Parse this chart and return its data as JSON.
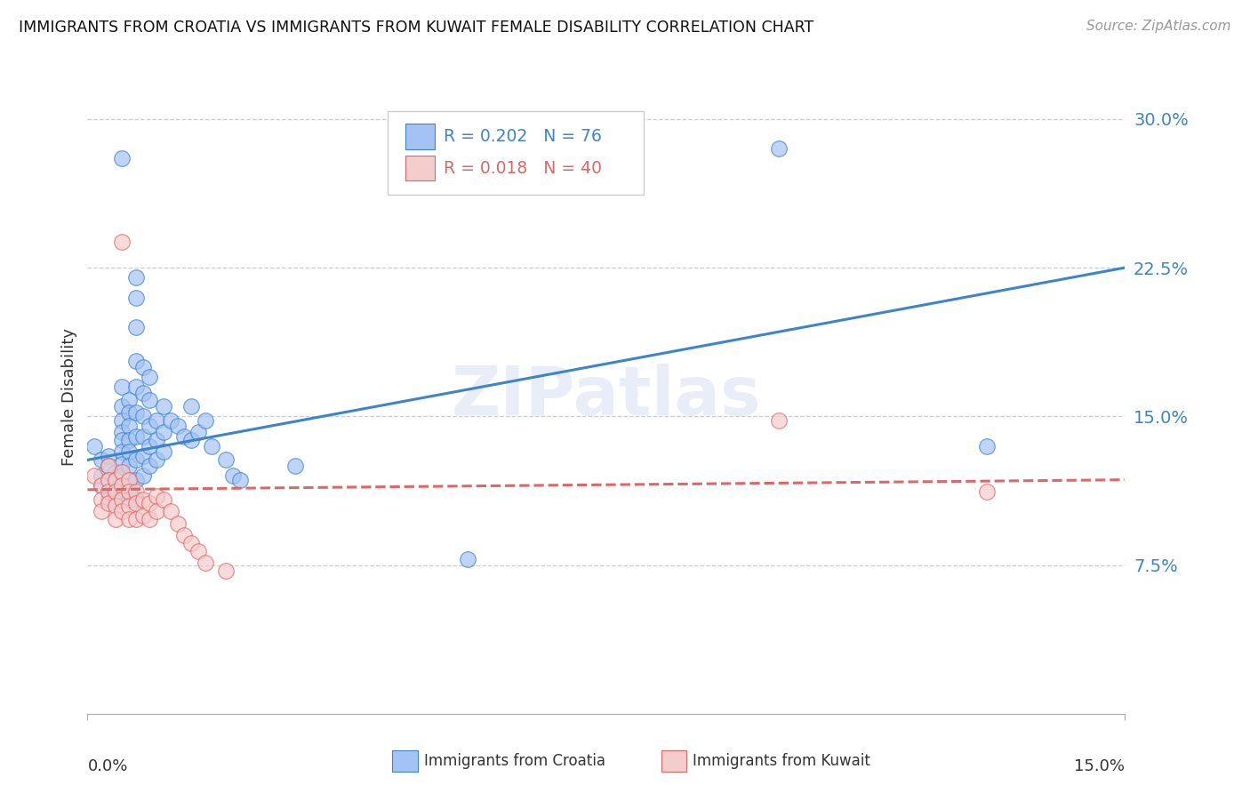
{
  "title": "IMMIGRANTS FROM CROATIA VS IMMIGRANTS FROM KUWAIT FEMALE DISABILITY CORRELATION CHART",
  "source": "Source: ZipAtlas.com",
  "ylabel": "Female Disability",
  "yticks": [
    0.0,
    0.075,
    0.15,
    0.225,
    0.3
  ],
  "ytick_labels": [
    "",
    "7.5%",
    "15.0%",
    "22.5%",
    "30.0%"
  ],
  "xlim": [
    0.0,
    0.15
  ],
  "ylim": [
    0.0,
    0.32
  ],
  "watermark": "ZIPatlas",
  "color_croatia": "#a4c2f4",
  "color_kuwait": "#f4cccc",
  "color_line_croatia": "#3d85c8",
  "color_line_kuwait": "#e06666",
  "legend_label_1": "Immigrants from Croatia",
  "legend_label_2": "Immigrants from Kuwait",
  "cr_line_y0": 0.128,
  "cr_line_y1": 0.225,
  "kw_line_y0": 0.113,
  "kw_line_y1": 0.118,
  "croatia_pts": [
    [
      0.001,
      0.135
    ],
    [
      0.002,
      0.128
    ],
    [
      0.002,
      0.12
    ],
    [
      0.002,
      0.115
    ],
    [
      0.003,
      0.13
    ],
    [
      0.003,
      0.125
    ],
    [
      0.003,
      0.118
    ],
    [
      0.003,
      0.112
    ],
    [
      0.003,
      0.108
    ],
    [
      0.004,
      0.122
    ],
    [
      0.004,
      0.117
    ],
    [
      0.004,
      0.113
    ],
    [
      0.004,
      0.107
    ],
    [
      0.005,
      0.28
    ],
    [
      0.005,
      0.165
    ],
    [
      0.005,
      0.155
    ],
    [
      0.005,
      0.148
    ],
    [
      0.005,
      0.142
    ],
    [
      0.005,
      0.138
    ],
    [
      0.005,
      0.132
    ],
    [
      0.005,
      0.126
    ],
    [
      0.005,
      0.12
    ],
    [
      0.005,
      0.115
    ],
    [
      0.005,
      0.11
    ],
    [
      0.006,
      0.158
    ],
    [
      0.006,
      0.152
    ],
    [
      0.006,
      0.145
    ],
    [
      0.006,
      0.138
    ],
    [
      0.006,
      0.132
    ],
    [
      0.006,
      0.125
    ],
    [
      0.006,
      0.118
    ],
    [
      0.006,
      0.112
    ],
    [
      0.006,
      0.108
    ],
    [
      0.007,
      0.22
    ],
    [
      0.007,
      0.21
    ],
    [
      0.007,
      0.195
    ],
    [
      0.007,
      0.178
    ],
    [
      0.007,
      0.165
    ],
    [
      0.007,
      0.152
    ],
    [
      0.007,
      0.14
    ],
    [
      0.007,
      0.128
    ],
    [
      0.007,
      0.118
    ],
    [
      0.007,
      0.108
    ],
    [
      0.008,
      0.175
    ],
    [
      0.008,
      0.162
    ],
    [
      0.008,
      0.15
    ],
    [
      0.008,
      0.14
    ],
    [
      0.008,
      0.13
    ],
    [
      0.008,
      0.12
    ],
    [
      0.009,
      0.17
    ],
    [
      0.009,
      0.158
    ],
    [
      0.009,
      0.145
    ],
    [
      0.009,
      0.135
    ],
    [
      0.009,
      0.125
    ],
    [
      0.01,
      0.148
    ],
    [
      0.01,
      0.138
    ],
    [
      0.01,
      0.128
    ],
    [
      0.011,
      0.155
    ],
    [
      0.011,
      0.142
    ],
    [
      0.011,
      0.132
    ],
    [
      0.012,
      0.148
    ],
    [
      0.013,
      0.145
    ],
    [
      0.014,
      0.14
    ],
    [
      0.015,
      0.155
    ],
    [
      0.015,
      0.138
    ],
    [
      0.016,
      0.142
    ],
    [
      0.017,
      0.148
    ],
    [
      0.018,
      0.135
    ],
    [
      0.02,
      0.128
    ],
    [
      0.021,
      0.12
    ],
    [
      0.022,
      0.118
    ],
    [
      0.03,
      0.125
    ],
    [
      0.055,
      0.078
    ],
    [
      0.1,
      0.285
    ],
    [
      0.13,
      0.135
    ]
  ],
  "kuwait_pts": [
    [
      0.001,
      0.12
    ],
    [
      0.002,
      0.115
    ],
    [
      0.002,
      0.108
    ],
    [
      0.002,
      0.102
    ],
    [
      0.003,
      0.125
    ],
    [
      0.003,
      0.118
    ],
    [
      0.003,
      0.112
    ],
    [
      0.003,
      0.106
    ],
    [
      0.004,
      0.118
    ],
    [
      0.004,
      0.112
    ],
    [
      0.004,
      0.105
    ],
    [
      0.004,
      0.098
    ],
    [
      0.005,
      0.238
    ],
    [
      0.005,
      0.122
    ],
    [
      0.005,
      0.115
    ],
    [
      0.005,
      0.108
    ],
    [
      0.005,
      0.102
    ],
    [
      0.006,
      0.118
    ],
    [
      0.006,
      0.112
    ],
    [
      0.006,
      0.105
    ],
    [
      0.006,
      0.098
    ],
    [
      0.007,
      0.112
    ],
    [
      0.007,
      0.106
    ],
    [
      0.007,
      0.098
    ],
    [
      0.008,
      0.108
    ],
    [
      0.008,
      0.1
    ],
    [
      0.009,
      0.106
    ],
    [
      0.009,
      0.098
    ],
    [
      0.01,
      0.11
    ],
    [
      0.01,
      0.102
    ],
    [
      0.011,
      0.108
    ],
    [
      0.012,
      0.102
    ],
    [
      0.013,
      0.096
    ],
    [
      0.014,
      0.09
    ],
    [
      0.015,
      0.086
    ],
    [
      0.016,
      0.082
    ],
    [
      0.017,
      0.076
    ],
    [
      0.02,
      0.072
    ],
    [
      0.1,
      0.148
    ],
    [
      0.13,
      0.112
    ]
  ]
}
